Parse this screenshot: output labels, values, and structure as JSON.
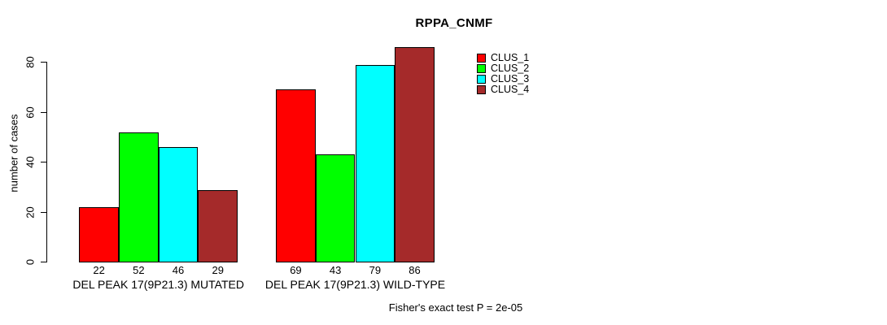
{
  "chart_data": {
    "type": "bar",
    "title": "RPPA_CNMF",
    "ylabel": "number of cases",
    "xlabel": "",
    "categories": [
      "DEL PEAK 17(9P21.3) MUTATED",
      "DEL PEAK 17(9P21.3) WILD-TYPE"
    ],
    "series": [
      {
        "name": "CLUS_1",
        "color": "#FF0000",
        "values": [
          22,
          69
        ]
      },
      {
        "name": "CLUS_2",
        "color": "#00FF00",
        "values": [
          52,
          43
        ]
      },
      {
        "name": "CLUS_3",
        "color": "#00FFFF",
        "values": [
          46,
          79
        ]
      },
      {
        "name": "CLUS_4",
        "color": "#A52A2A",
        "values": [
          29,
          86
        ]
      }
    ],
    "yticks": [
      0,
      20,
      40,
      60,
      80
    ],
    "ylim": [
      0,
      88
    ],
    "grid": false,
    "bar_value_labels_shown": true,
    "legend_position": "inside-top-right-of-plot",
    "footnote": "Fisher's exact test P = 2e-05"
  }
}
